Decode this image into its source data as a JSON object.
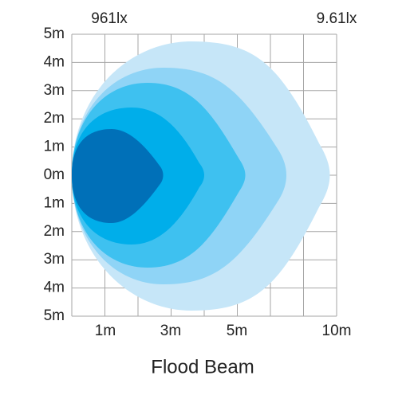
{
  "top_labels": [
    "961lx",
    "9.61lx"
  ],
  "y_axis_labels": [
    "5m",
    "4m",
    "3m",
    "2m",
    "1m",
    "0m",
    "1m",
    "2m",
    "3m",
    "4m",
    "5m"
  ],
  "x_axis_labels": [
    "1m",
    "3m",
    "5m",
    "10m"
  ],
  "title": "Flood Beam"
}
